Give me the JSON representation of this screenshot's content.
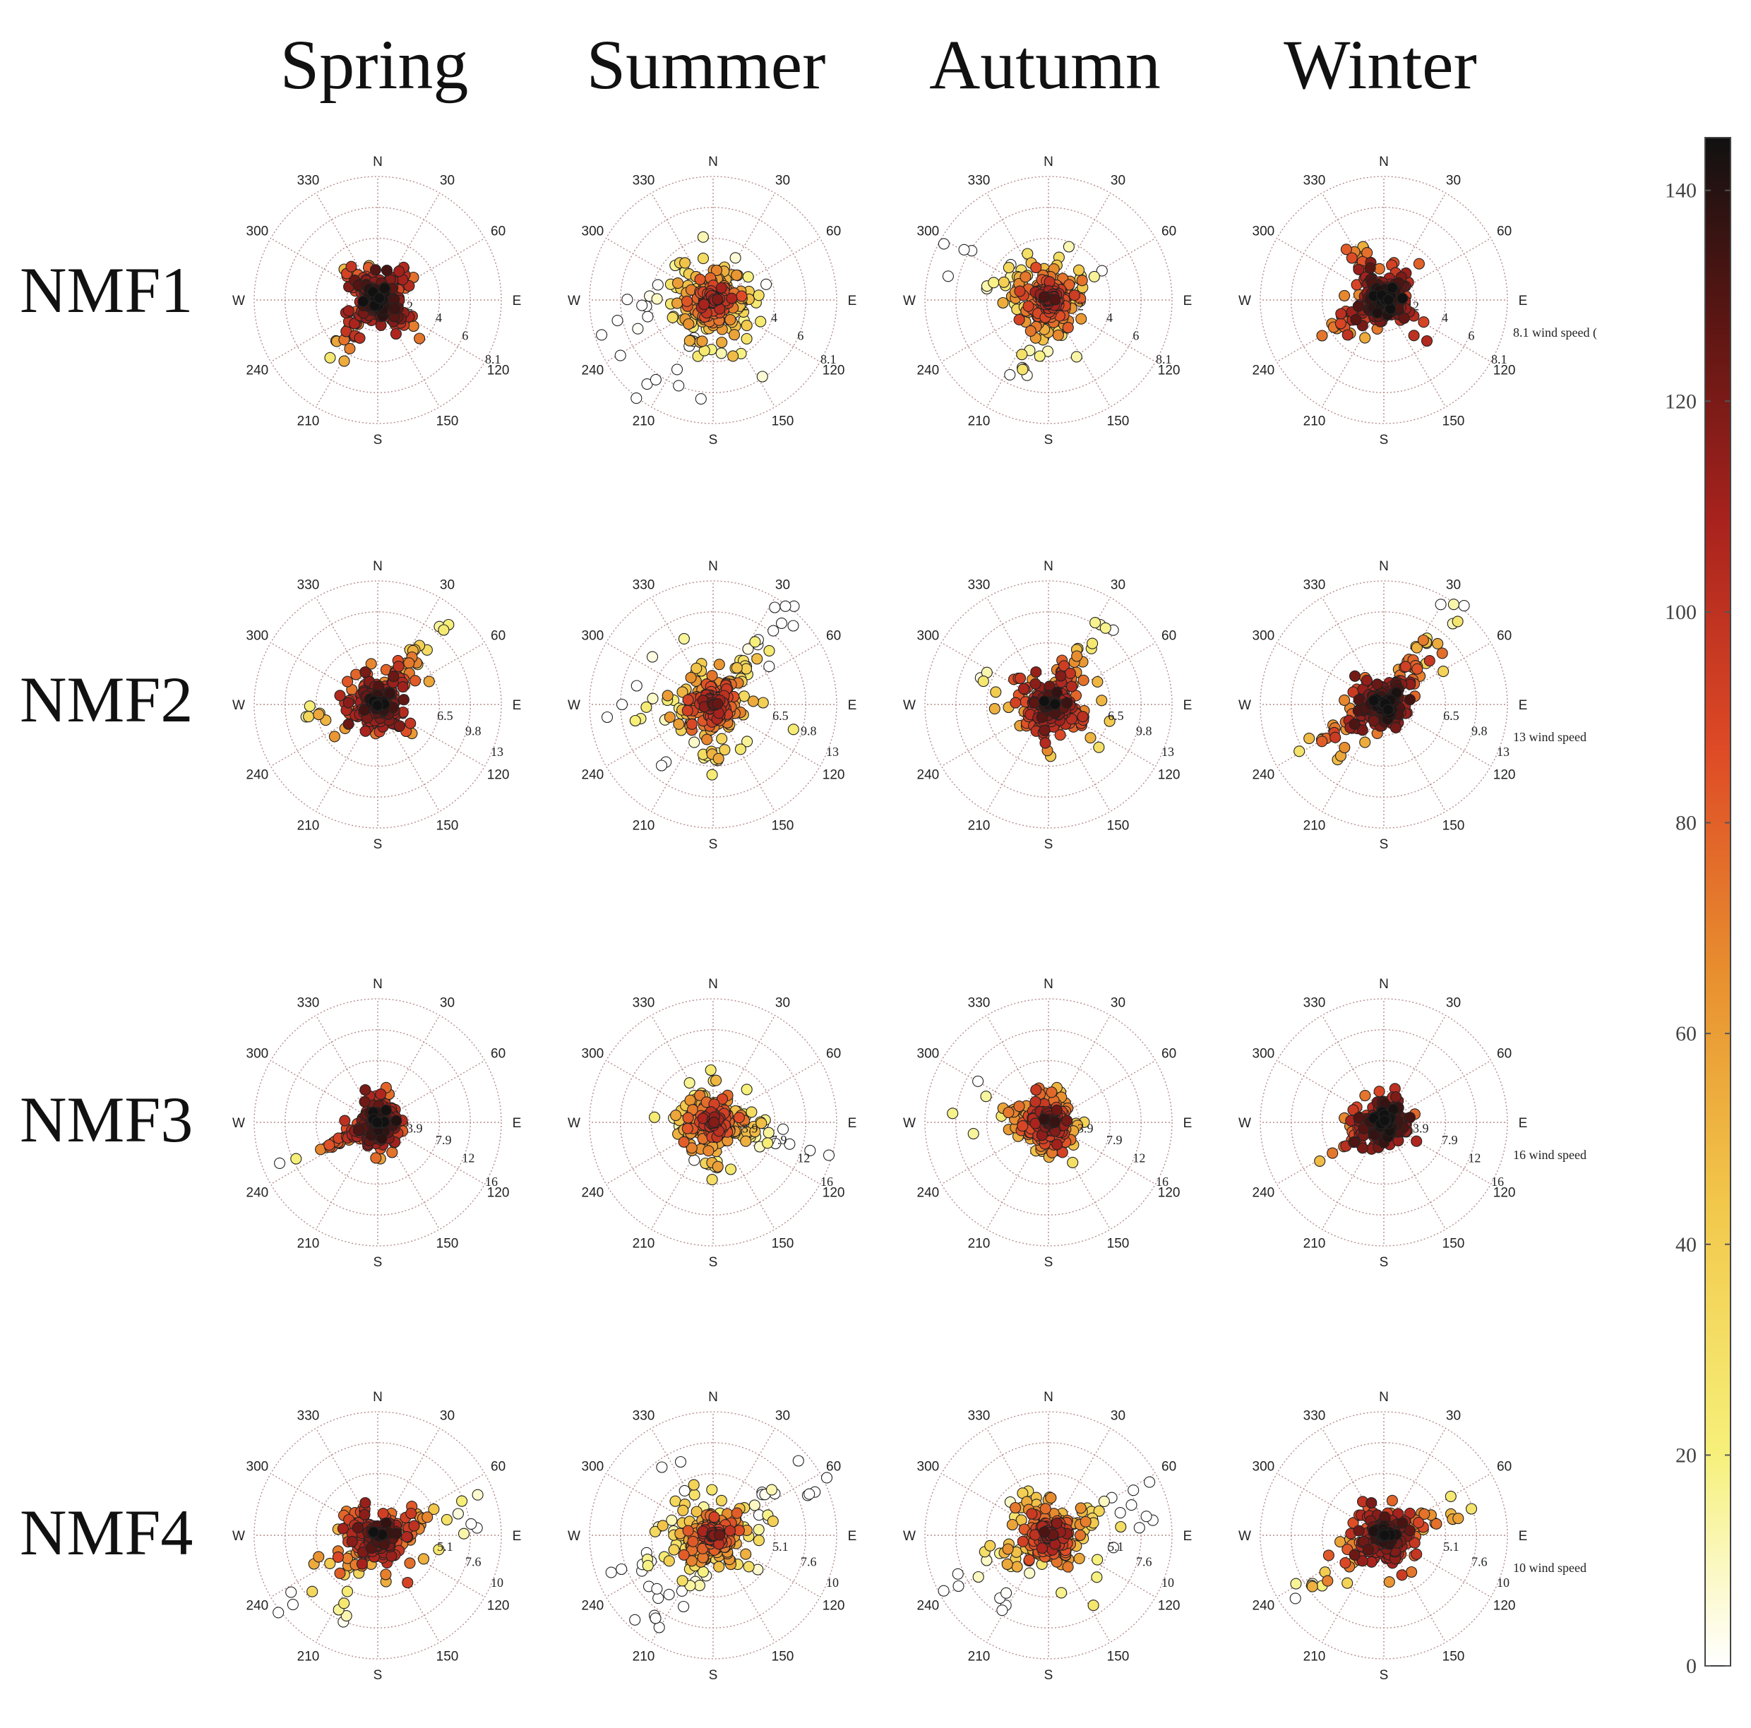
{
  "chart_data": {
    "type": "scatter",
    "subtype": "polar-wind-rose-grid",
    "column_titles": [
      "Spring",
      "Summer",
      "Autumn",
      "Winter"
    ],
    "row_titles": [
      "NMF1",
      "NMF2",
      "NMF3",
      "NMF4"
    ],
    "angle_labels": [
      "N",
      "30",
      "60",
      "E",
      "120",
      "150",
      "S",
      "210",
      "240",
      "W",
      "300",
      "330"
    ],
    "speed_label_suffix": "wind speed",
    "rows": [
      {
        "name": "NMF1",
        "max_speed": 8.1,
        "ring_labels": [
          "2",
          "4",
          "6",
          "8.1"
        ],
        "legend_text": "8.1 wind speed ("
      },
      {
        "name": "NMF2",
        "max_speed": 13,
        "ring_labels": [
          "6.5",
          "9.8",
          "13"
        ],
        "legend_text": "13 wind speed"
      },
      {
        "name": "NMF3",
        "max_speed": 16,
        "ring_labels": [
          "3.9",
          "7.9",
          "12",
          "16"
        ],
        "legend_text": "16 wind speed"
      },
      {
        "name": "NMF4",
        "max_speed": 10,
        "ring_labels": [
          "5.1",
          "7.6",
          "10"
        ],
        "legend_text": "10 wind speed"
      }
    ],
    "panels": [
      {
        "row": 0,
        "col": 0,
        "lobes": [
          [
            45,
            3.0,
            0.18
          ],
          [
            135,
            2.7,
            0.18
          ],
          [
            225,
            4.8,
            0.13
          ],
          [
            315,
            2.8,
            0.18
          ]
        ],
        "spread": 0.22,
        "warmth": 0.85
      },
      {
        "row": 0,
        "col": 1,
        "lobes": [
          [
            200,
            7.4,
            0.35
          ],
          [
            250,
            6.8,
            0.3
          ],
          [
            300,
            5.5,
            0.3
          ],
          [
            90,
            4.0,
            0.3
          ],
          [
            10,
            3.6,
            0.3
          ],
          [
            150,
            4.0,
            0.3
          ]
        ],
        "spread": 0.32,
        "warmth": 0.55
      },
      {
        "row": 0,
        "col": 2,
        "lobes": [
          [
            300,
            7.0,
            0.25
          ],
          [
            200,
            5.8,
            0.22
          ],
          [
            60,
            3.6,
            0.3
          ],
          [
            160,
            3.4,
            0.3
          ],
          [
            0,
            3.0,
            0.3
          ]
        ],
        "spread": 0.3,
        "warmth": 0.6
      },
      {
        "row": 0,
        "col": 3,
        "lobes": [
          [
            330,
            4.0,
            0.16
          ],
          [
            40,
            3.0,
            0.2
          ],
          [
            240,
            5.0,
            0.12
          ],
          [
            135,
            2.6,
            0.25
          ]
        ],
        "spread": 0.22,
        "warmth": 0.85
      },
      {
        "row": 1,
        "col": 0,
        "lobes": [
          [
            40,
            12.0,
            0.12
          ],
          [
            260,
            7.5,
            0.3
          ],
          [
            150,
            5.0,
            0.3
          ],
          [
            330,
            3.5,
            0.3
          ]
        ],
        "spread": 0.26,
        "warmth": 0.8
      },
      {
        "row": 1,
        "col": 1,
        "lobes": [
          [
            40,
            12.5,
            0.1
          ],
          [
            260,
            10.0,
            0.35
          ],
          [
            180,
            8.0,
            0.35
          ],
          [
            330,
            7.0,
            0.35
          ],
          [
            110,
            6.0,
            0.35
          ]
        ],
        "spread": 0.32,
        "warmth": 0.6
      },
      {
        "row": 1,
        "col": 2,
        "lobes": [
          [
            35,
            11.5,
            0.14
          ],
          [
            290,
            7.5,
            0.28
          ],
          [
            200,
            6.0,
            0.3
          ],
          [
            110,
            5.5,
            0.3
          ]
        ],
        "spread": 0.27,
        "warmth": 0.75
      },
      {
        "row": 1,
        "col": 3,
        "lobes": [
          [
            40,
            12.5,
            0.14
          ],
          [
            240,
            9.0,
            0.18
          ],
          [
            150,
            3.0,
            0.3
          ],
          [
            320,
            3.0,
            0.3
          ]
        ],
        "spread": 0.22,
        "warmth": 0.85
      },
      {
        "row": 2,
        "col": 0,
        "lobes": [
          [
            0,
            4.2,
            0.4
          ],
          [
            90,
            3.6,
            0.4
          ],
          [
            180,
            4.5,
            0.35
          ],
          [
            270,
            3.6,
            0.4
          ],
          [
            245,
            11.0,
            0.04
          ]
        ],
        "spread": 0.22,
        "warmth": 0.8
      },
      {
        "row": 2,
        "col": 1,
        "lobes": [
          [
            0,
            6.0,
            0.45
          ],
          [
            90,
            8.0,
            0.35
          ],
          [
            180,
            8.0,
            0.35
          ],
          [
            270,
            7.0,
            0.4
          ],
          [
            110,
            15.0,
            0.05
          ]
        ],
        "spread": 0.3,
        "warmth": 0.55
      },
      {
        "row": 2,
        "col": 2,
        "lobes": [
          [
            0,
            4.5,
            0.4
          ],
          [
            90,
            4.0,
            0.4
          ],
          [
            170,
            6.5,
            0.3
          ],
          [
            280,
            8.5,
            0.3
          ]
        ],
        "spread": 0.27,
        "warmth": 0.65
      },
      {
        "row": 2,
        "col": 3,
        "lobes": [
          [
            20,
            4.0,
            0.4
          ],
          [
            100,
            3.5,
            0.4
          ],
          [
            190,
            3.5,
            0.4
          ],
          [
            270,
            3.0,
            0.4
          ],
          [
            240,
            9.0,
            0.04
          ]
        ],
        "spread": 0.22,
        "warmth": 0.85
      },
      {
        "row": 3,
        "col": 0,
        "lobes": [
          [
            75,
            8.5,
            0.2
          ],
          [
            230,
            9.0,
            0.25
          ],
          [
            300,
            4.0,
            0.3
          ],
          [
            150,
            3.0,
            0.3
          ]
        ],
        "spread": 0.26,
        "warmth": 0.75
      },
      {
        "row": 3,
        "col": 1,
        "lobes": [
          [
            65,
            9.5,
            0.22
          ],
          [
            215,
            9.8,
            0.25
          ],
          [
            250,
            8.5,
            0.3
          ],
          [
            330,
            6.0,
            0.35
          ],
          [
            150,
            4.5,
            0.3
          ]
        ],
        "spread": 0.3,
        "warmth": 0.55
      },
      {
        "row": 3,
        "col": 2,
        "lobes": [
          [
            70,
            9.0,
            0.22
          ],
          [
            240,
            8.5,
            0.25
          ],
          [
            330,
            5.0,
            0.3
          ],
          [
            150,
            4.5,
            0.3
          ]
        ],
        "spread": 0.28,
        "warmth": 0.6
      },
      {
        "row": 3,
        "col": 3,
        "lobes": [
          [
            75,
            6.5,
            0.2
          ],
          [
            235,
            8.5,
            0.2
          ],
          [
            330,
            3.5,
            0.35
          ],
          [
            150,
            3.0,
            0.35
          ]
        ],
        "spread": 0.24,
        "warmth": 0.8
      }
    ],
    "colorbar": {
      "min": 0,
      "max": 145,
      "ticks": [
        0,
        20,
        40,
        60,
        80,
        100,
        120,
        140
      ],
      "colors": [
        "#ffffff",
        "#f6f07a",
        "#f2c84b",
        "#e8902f",
        "#de4a26",
        "#a8221d",
        "#5b1613",
        "#111111"
      ]
    },
    "xlabel": "",
    "ylabel": ""
  }
}
